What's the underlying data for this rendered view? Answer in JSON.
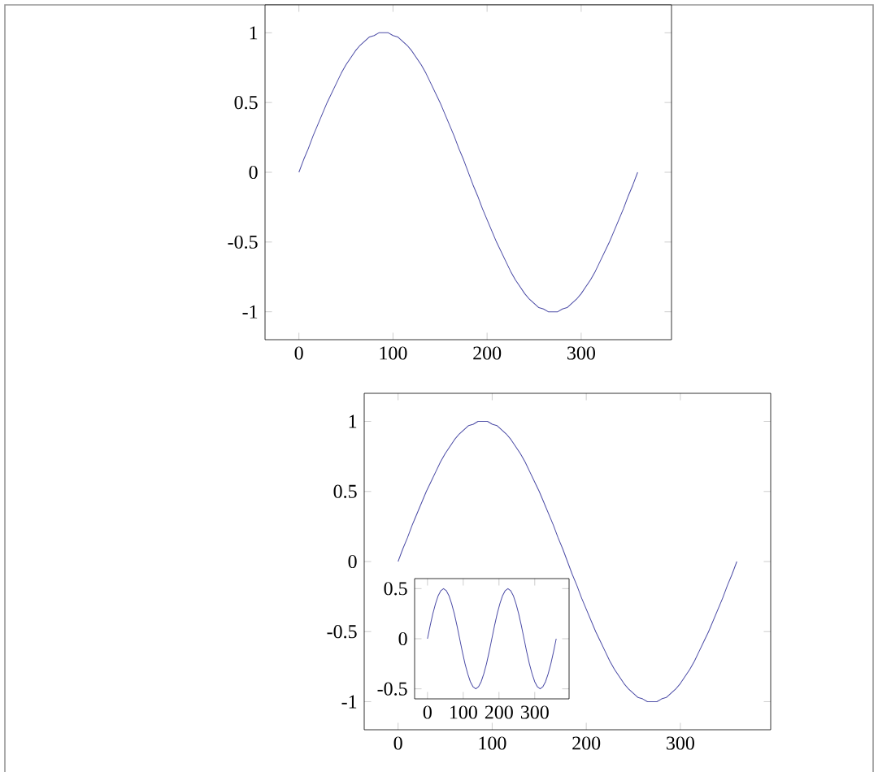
{
  "chart_data": [
    {
      "type": "line",
      "x": [
        0,
        5,
        10,
        15,
        20,
        25,
        30,
        35,
        40,
        45,
        50,
        55,
        60,
        65,
        70,
        75,
        80,
        85,
        90,
        95,
        100,
        105,
        110,
        115,
        120,
        125,
        130,
        135,
        140,
        145,
        150,
        155,
        160,
        165,
        170,
        175,
        180,
        185,
        190,
        195,
        200,
        205,
        210,
        215,
        220,
        225,
        230,
        235,
        240,
        245,
        250,
        255,
        260,
        265,
        270,
        275,
        280,
        285,
        290,
        295,
        300,
        305,
        310,
        315,
        320,
        325,
        330,
        335,
        340,
        345,
        350,
        355,
        360
      ],
      "series": [
        {
          "color": "#4c4ca6",
          "values": [
            0,
            0.09,
            0.17,
            0.26,
            0.34,
            0.42,
            0.5,
            0.57,
            0.64,
            0.71,
            0.77,
            0.82,
            0.87,
            0.91,
            0.94,
            0.97,
            0.98,
            1,
            1,
            1,
            0.98,
            0.97,
            0.94,
            0.91,
            0.87,
            0.82,
            0.77,
            0.71,
            0.64,
            0.57,
            0.5,
            0.42,
            0.34,
            0.26,
            0.17,
            0.09,
            0,
            -0.09,
            -0.17,
            -0.26,
            -0.34,
            -0.42,
            -0.5,
            -0.57,
            -0.64,
            -0.71,
            -0.77,
            -0.82,
            -0.87,
            -0.91,
            -0.94,
            -0.97,
            -0.98,
            -1,
            -1,
            -1,
            -0.98,
            -0.97,
            -0.94,
            -0.91,
            -0.87,
            -0.82,
            -0.77,
            -0.71,
            -0.64,
            -0.57,
            -0.5,
            -0.42,
            -0.34,
            -0.26,
            -0.17,
            -0.09,
            0
          ]
        }
      ],
      "xlim": [
        -36,
        396
      ],
      "ylim": [
        -1.2,
        1.2
      ],
      "xticks": [
        0,
        100,
        200,
        300
      ],
      "yticks": [
        -1,
        -0.5,
        0,
        0.5,
        1
      ]
    },
    {
      "type": "line",
      "x": [
        0,
        5,
        10,
        15,
        20,
        25,
        30,
        35,
        40,
        45,
        50,
        55,
        60,
        65,
        70,
        75,
        80,
        85,
        90,
        95,
        100,
        105,
        110,
        115,
        120,
        125,
        130,
        135,
        140,
        145,
        150,
        155,
        160,
        165,
        170,
        175,
        180,
        185,
        190,
        195,
        200,
        205,
        210,
        215,
        220,
        225,
        230,
        235,
        240,
        245,
        250,
        255,
        260,
        265,
        270,
        275,
        280,
        285,
        290,
        295,
        300,
        305,
        310,
        315,
        320,
        325,
        330,
        335,
        340,
        345,
        350,
        355,
        360
      ],
      "series": [
        {
          "color": "#4c4ca6",
          "values": [
            0,
            0.09,
            0.17,
            0.26,
            0.34,
            0.42,
            0.5,
            0.57,
            0.64,
            0.71,
            0.77,
            0.82,
            0.87,
            0.91,
            0.94,
            0.97,
            0.98,
            1,
            1,
            1,
            0.98,
            0.97,
            0.94,
            0.91,
            0.87,
            0.82,
            0.77,
            0.71,
            0.64,
            0.57,
            0.5,
            0.42,
            0.34,
            0.26,
            0.17,
            0.09,
            0,
            -0.09,
            -0.17,
            -0.26,
            -0.34,
            -0.42,
            -0.5,
            -0.57,
            -0.64,
            -0.71,
            -0.77,
            -0.82,
            -0.87,
            -0.91,
            -0.94,
            -0.97,
            -0.98,
            -1,
            -1,
            -1,
            -0.98,
            -0.97,
            -0.94,
            -0.91,
            -0.87,
            -0.82,
            -0.77,
            -0.71,
            -0.64,
            -0.57,
            -0.5,
            -0.42,
            -0.34,
            -0.26,
            -0.17,
            -0.09,
            0
          ]
        }
      ],
      "xlim": [
        -36,
        396
      ],
      "ylim": [
        -1.2,
        1.2
      ],
      "xticks": [
        0,
        100,
        200,
        300
      ],
      "yticks": [
        -1,
        -0.5,
        0,
        0.5,
        1
      ]
    },
    {
      "type": "line",
      "x": [
        0,
        7.5,
        15,
        22.5,
        30,
        37.5,
        45,
        52.5,
        60,
        67.5,
        75,
        82.5,
        90,
        97.5,
        105,
        112.5,
        120,
        127.5,
        135,
        142.5,
        150,
        157.5,
        165,
        172.5,
        180,
        187.5,
        195,
        202.5,
        210,
        217.5,
        225,
        232.5,
        240,
        247.5,
        255,
        262.5,
        270,
        277.5,
        285,
        292.5,
        300,
        307.5,
        315,
        322.5,
        330,
        337.5,
        345,
        352.5,
        360
      ],
      "series": [
        {
          "color": "#4c4ca6",
          "values": [
            0,
            0.13,
            0.25,
            0.35,
            0.43,
            0.48,
            0.5,
            0.48,
            0.43,
            0.35,
            0.25,
            0.13,
            0,
            -0.13,
            -0.25,
            -0.35,
            -0.43,
            -0.48,
            -0.5,
            -0.48,
            -0.43,
            -0.35,
            -0.25,
            -0.13,
            0,
            0.13,
            0.25,
            0.35,
            0.43,
            0.48,
            0.5,
            0.48,
            0.43,
            0.35,
            0.25,
            0.13,
            0,
            -0.13,
            -0.25,
            -0.35,
            -0.43,
            -0.48,
            -0.5,
            -0.48,
            -0.43,
            -0.35,
            -0.25,
            -0.13,
            0
          ]
        }
      ],
      "xlim": [
        -36,
        396
      ],
      "ylim": [
        -0.6,
        0.6
      ],
      "xticks": [
        0,
        100,
        200,
        300
      ],
      "yticks": [
        -0.5,
        0,
        0.5
      ]
    }
  ]
}
